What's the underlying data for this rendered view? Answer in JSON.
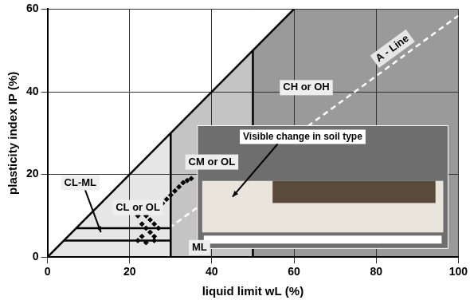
{
  "chart_data": {
    "type": "scatter",
    "x_label": "liquid limit wL (%)",
    "y_label": "plasticity index IP (%)",
    "xlim": [
      0,
      100
    ],
    "xticks": [
      0,
      20,
      40,
      60,
      80,
      100
    ],
    "ylim": [
      0,
      60
    ],
    "yticks": [
      0,
      20,
      40,
      60
    ],
    "grid": true,
    "marker": "diamond",
    "color": "#000000",
    "points": [
      [
        22,
        4
      ],
      [
        23,
        5
      ],
      [
        23,
        8
      ],
      [
        24,
        10
      ],
      [
        24,
        3.5
      ],
      [
        25,
        6
      ],
      [
        25,
        9
      ],
      [
        26,
        5
      ],
      [
        26,
        8
      ],
      [
        27,
        7
      ],
      [
        27,
        12
      ],
      [
        28,
        13
      ],
      [
        29,
        14
      ],
      [
        30,
        15
      ],
      [
        31,
        16
      ],
      [
        32,
        17
      ],
      [
        33,
        18
      ],
      [
        34,
        18.5
      ],
      [
        35,
        19
      ],
      [
        26,
        4
      ],
      [
        24,
        7
      ],
      [
        22,
        10
      ],
      [
        25,
        11
      ]
    ],
    "regions": [
      {
        "polygon": [
          [
            0,
            0
          ],
          [
            30,
            30
          ],
          [
            30,
            0
          ]
        ],
        "color": "#e6e6e6"
      },
      {
        "polygon": [
          [
            30,
            0
          ],
          [
            30,
            30
          ],
          [
            50,
            50
          ],
          [
            50,
            0
          ]
        ],
        "color": "#c4c4c4"
      },
      {
        "polygon": [
          [
            50,
            0
          ],
          [
            50,
            50
          ],
          [
            60,
            60
          ],
          [
            100,
            60
          ],
          [
            100,
            0
          ]
        ],
        "color": "#9a9a9a"
      }
    ],
    "lines": [
      {
        "points": [
          [
            0,
            0
          ],
          [
            60,
            60
          ]
        ],
        "color": "#000000",
        "line_style": "solid"
      },
      {
        "points": [
          [
            30,
            0
          ],
          [
            30,
            30
          ]
        ],
        "color": "#000000",
        "line_style": "solid"
      },
      {
        "points": [
          [
            50,
            0
          ],
          [
            50,
            50
          ]
        ],
        "color": "#000000",
        "line_style": "solid"
      },
      {
        "points": [
          [
            4,
            4
          ],
          [
            30,
            4
          ]
        ],
        "color": "#000000",
        "line_style": "solid"
      },
      {
        "points": [
          [
            7,
            7
          ],
          [
            30,
            7
          ]
        ],
        "color": "#000000",
        "line_style": "solid"
      },
      {
        "points": [
          [
            29.6,
            7
          ],
          [
            100,
            58.4
          ]
        ],
        "color": "#ffffff",
        "line_style": "dashed",
        "label": "A - Line"
      }
    ],
    "annotations": [
      {
        "text": "CH or OH",
        "x": 63,
        "y": 41
      },
      {
        "text": "CM or OL",
        "x": 40,
        "y": 23
      },
      {
        "text": "CL or OL",
        "x": 22,
        "y": 12
      },
      {
        "text": "ML",
        "x": 37,
        "y": 2.3
      },
      {
        "text": "CL-ML",
        "x": 8,
        "y": 18,
        "arrow_to": [
          13,
          6
        ]
      }
    ],
    "inset": {
      "text": "Visible change in soil type"
    }
  }
}
